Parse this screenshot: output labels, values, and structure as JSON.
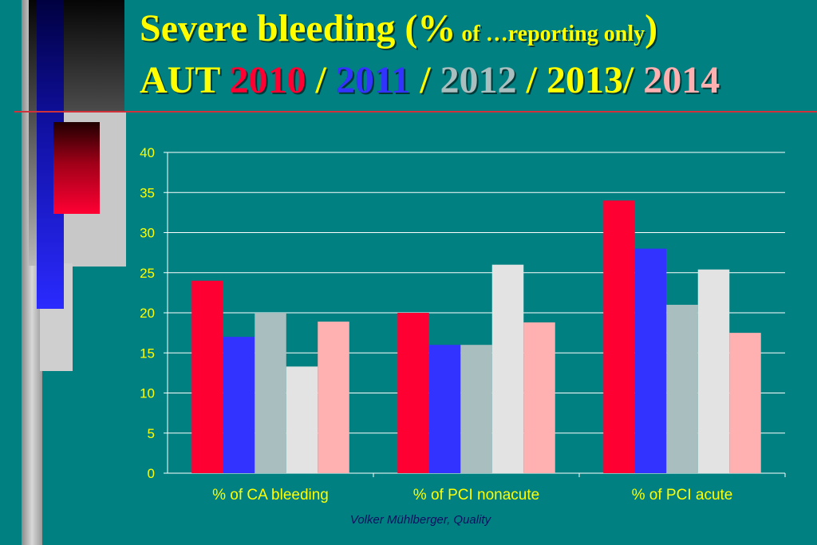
{
  "title": {
    "line1_main": "Severe  bleeding (%",
    "line1_small": " of …reporting only",
    "line1_close": ")",
    "line2": [
      {
        "text": "AUT ",
        "color": "#FFFF00"
      },
      {
        "text": "2010",
        "color": "#FF0033"
      },
      {
        "text": " / ",
        "color": "#FFFF00"
      },
      {
        "text": "2011",
        "color": "#3333FF"
      },
      {
        "text": " / ",
        "color": "#FFFF00"
      },
      {
        "text": "2012",
        "color": "#A9BEBE"
      },
      {
        "text": " / 2013/ ",
        "color": "#FFFF00"
      },
      {
        "text": "2014",
        "color": "#FFB0B0"
      }
    ]
  },
  "chart_data": {
    "type": "bar",
    "categories": [
      "% of CA bleeding",
      "% of PCI nonacute",
      "% of PCI acute"
    ],
    "series": [
      {
        "values": [
          24,
          20,
          34
        ],
        "color": "#FF0033"
      },
      {
        "values": [
          17,
          16,
          28
        ],
        "color": "#3333FF"
      },
      {
        "values": [
          20,
          16,
          21
        ],
        "color": "#A9BEBE"
      },
      {
        "values": [
          13.3,
          26,
          25.4
        ],
        "color": "#E3E3E3"
      },
      {
        "values": [
          18.9,
          18.8,
          17.5
        ],
        "color": "#FFB0B0"
      }
    ],
    "ylim": [
      0,
      40
    ],
    "yticks": [
      0,
      5,
      10,
      15,
      20,
      25,
      30,
      35,
      40
    ],
    "grid": true,
    "axis_text_color": "#FFFF00",
    "grid_color": "#FFFFFF"
  },
  "footer": "Volker Mühlberger, Quality"
}
